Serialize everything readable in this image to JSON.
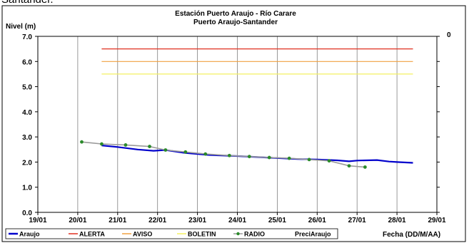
{
  "page": {
    "caption": "Santander."
  },
  "chart_data": {
    "type": "line",
    "title": "Estación Puerto Araujo - Río Carare",
    "subtitle": "Puerto Araujo-Santander",
    "ylabel": "Nivel (m)",
    "xlabel": "Fecha (DD/M/AA)",
    "ylim": [
      0,
      7
    ],
    "y_ticks": [
      "0.0",
      "1.0",
      "2.0",
      "3.0",
      "4.0",
      "5.0",
      "6.0",
      "7.0"
    ],
    "y2_ticks": [
      "0"
    ],
    "x_ticks": [
      "19/01",
      "20/01",
      "21/01",
      "22/01",
      "23/01",
      "24/01",
      "25/01",
      "26/01",
      "27/01",
      "28/01",
      "29/01"
    ],
    "xlim": [
      19,
      29
    ],
    "grid": "vertical",
    "legend_placement": "bottom",
    "series": [
      {
        "name": "Araujo",
        "color": "#0000cc",
        "style": "line",
        "x": [
          20.6,
          21.0,
          21.5,
          21.9,
          22.2,
          22.7,
          23.3,
          24.0,
          24.5,
          25.0,
          25.5,
          26.0,
          26.5,
          26.8,
          27.0,
          27.5,
          27.8,
          28.0,
          28.4
        ],
        "values": [
          2.66,
          2.6,
          2.5,
          2.45,
          2.48,
          2.36,
          2.28,
          2.24,
          2.2,
          2.16,
          2.12,
          2.1,
          2.07,
          2.03,
          2.06,
          2.08,
          2.02,
          2.0,
          1.97
        ]
      },
      {
        "name": "ALERTA",
        "color": "#e03020",
        "style": "line",
        "x": [
          20.6,
          28.4
        ],
        "values": [
          6.5,
          6.5
        ]
      },
      {
        "name": "AVISO",
        "color": "#f0a040",
        "style": "line",
        "x": [
          20.6,
          28.4
        ],
        "values": [
          6.0,
          6.0
        ]
      },
      {
        "name": "BOLETIN",
        "color": "#f4f060",
        "style": "line",
        "x": [
          20.6,
          28.4
        ],
        "values": [
          5.5,
          5.5
        ]
      },
      {
        "name": "RADIO",
        "color": "#9a9a9a",
        "marker_color": "#2a8a2a",
        "style": "line-markers",
        "x": [
          20.1,
          20.6,
          21.2,
          21.8,
          22.2,
          22.7,
          23.2,
          23.8,
          24.3,
          24.8,
          25.3,
          25.8,
          26.3,
          26.8,
          27.2
        ],
        "values": [
          2.8,
          2.72,
          2.68,
          2.62,
          2.48,
          2.4,
          2.32,
          2.26,
          2.22,
          2.18,
          2.15,
          2.1,
          2.05,
          1.85,
          1.8
        ]
      },
      {
        "name": "PreciAraujo",
        "color": "#3030cc",
        "style": "bar",
        "x": [],
        "values": []
      }
    ]
  }
}
